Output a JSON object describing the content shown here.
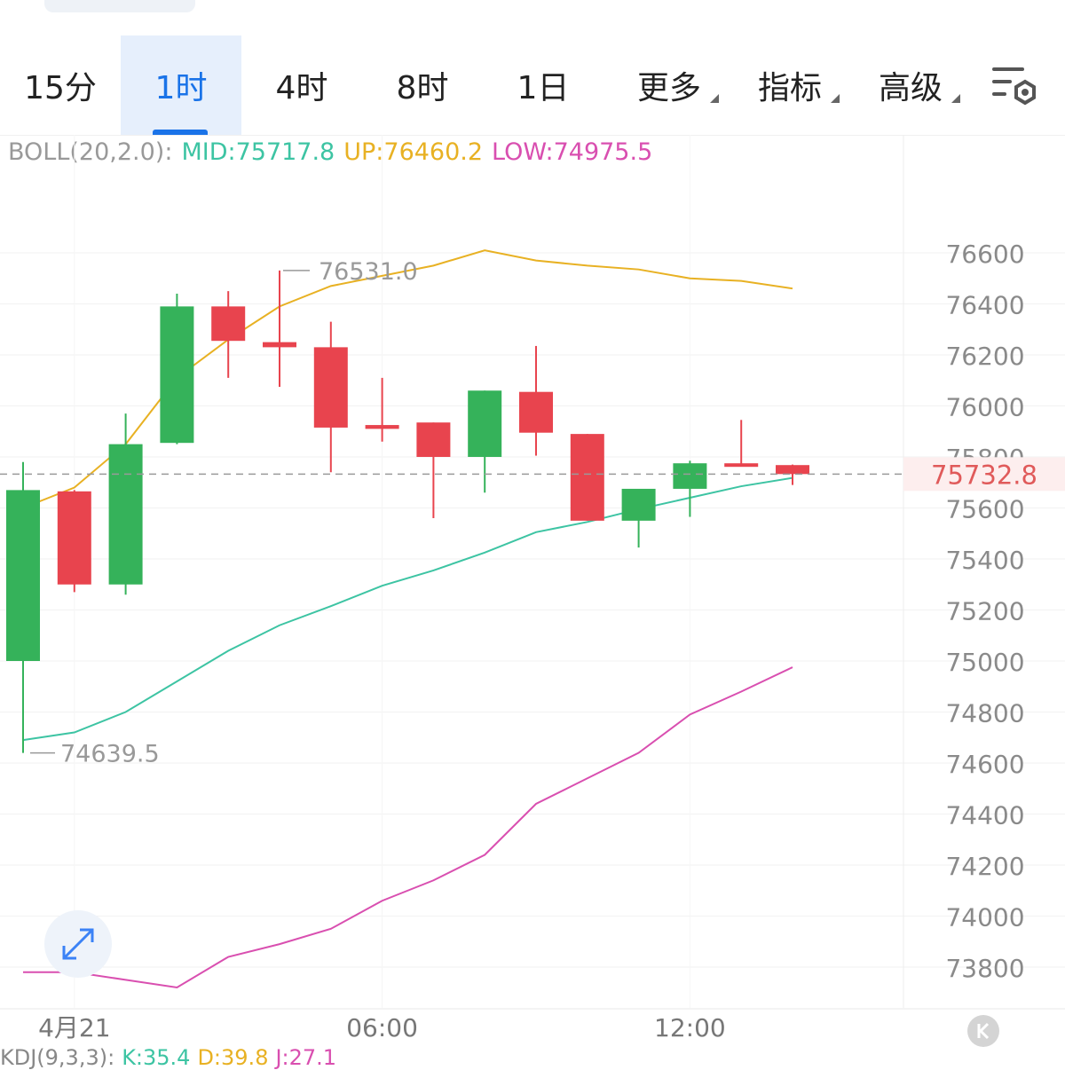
{
  "tabs": [
    {
      "label": "15分",
      "active": false,
      "dropdown": false
    },
    {
      "label": "1时",
      "active": true,
      "dropdown": false
    },
    {
      "label": "4时",
      "active": false,
      "dropdown": false
    },
    {
      "label": "8时",
      "active": false,
      "dropdown": false
    },
    {
      "label": "1日",
      "active": false,
      "dropdown": false
    },
    {
      "label": "更多",
      "active": false,
      "dropdown": true
    },
    {
      "label": "指标",
      "active": false,
      "dropdown": true
    },
    {
      "label": "高级",
      "active": false,
      "dropdown": true
    }
  ],
  "settings_icon": "chart-settings-icon",
  "boll": {
    "label": "BOLL(20,2.0):",
    "mid": "MID:75717.8",
    "up": "UP:76460.2",
    "low": "LOW:74975.5"
  },
  "kdj": {
    "label": "KDJ(9,3,3):",
    "k": "K:35.4",
    "d": "D:39.8",
    "j": "J:27.1"
  },
  "colors": {
    "up_candle": "#35b25a",
    "down_candle": "#e8444e",
    "mid": "#3dc4a3",
    "upper": "#e8b123",
    "lower": "#d94fb0",
    "accent": "#1a73e8",
    "last_price": "#e05a5a"
  },
  "chart_data": {
    "type": "candlestick",
    "y_axis_ticks": [
      "76600",
      "76400",
      "76200",
      "76000",
      "75800",
      "75600",
      "75400",
      "75200",
      "75000",
      "74800",
      "74600",
      "74400",
      "74200",
      "74000",
      "73800"
    ],
    "ylim": [
      73800,
      76600
    ],
    "x_axis_labels": [
      {
        "label": "4月21",
        "index": 1
      },
      {
        "label": "06:00",
        "index": 7
      },
      {
        "label": "12:00",
        "index": 13
      }
    ],
    "last_price": "75732.8",
    "max_label": "76531.0",
    "min_label": "74639.5",
    "candles": [
      {
        "open": 75000,
        "high": 75780,
        "low": 74639.5,
        "close": 75670
      },
      {
        "open": 75665,
        "high": 75670,
        "low": 75270,
        "close": 75300
      },
      {
        "open": 75300,
        "high": 75970,
        "low": 75260,
        "close": 75850
      },
      {
        "open": 75855,
        "high": 76440,
        "low": 75850,
        "close": 76390
      },
      {
        "open": 76390,
        "high": 76450,
        "low": 76110,
        "close": 76255
      },
      {
        "open": 76250,
        "high": 76531.0,
        "low": 76075,
        "close": 76230
      },
      {
        "open": 76230,
        "high": 76330,
        "low": 75740,
        "close": 75915
      },
      {
        "open": 75925,
        "high": 76110,
        "low": 75860,
        "close": 75910
      },
      {
        "open": 75935,
        "high": 75935,
        "low": 75560,
        "close": 75800
      },
      {
        "open": 75800,
        "high": 76060,
        "low": 75660,
        "close": 76060
      },
      {
        "open": 76055,
        "high": 76235,
        "low": 75805,
        "close": 75895
      },
      {
        "open": 75890,
        "high": 75890,
        "low": 75550,
        "close": 75550
      },
      {
        "open": 75550,
        "high": 75675,
        "low": 75445,
        "close": 75675
      },
      {
        "open": 75675,
        "high": 75785,
        "low": 75565,
        "close": 75775
      },
      {
        "open": 75775,
        "high": 75945,
        "low": 75765,
        "close": 75770
      },
      {
        "open": 75768,
        "high": 75770,
        "low": 75690,
        "close": 75732.8
      }
    ],
    "series": [
      {
        "name": "UP",
        "values": [
          75600,
          75680,
          75850,
          76110,
          76260,
          76390,
          76470,
          76510,
          76550,
          76610,
          76570,
          76550,
          76535,
          76500,
          76490,
          76460.2
        ]
      },
      {
        "name": "MID",
        "values": [
          74690,
          74720,
          74800,
          74920,
          75040,
          75140,
          75215,
          75295,
          75355,
          75425,
          75505,
          75545,
          75595,
          75640,
          75685,
          75717.8
        ]
      },
      {
        "name": "LOW",
        "values": [
          73780,
          73780,
          73750,
          73720,
          73840,
          73890,
          73950,
          74060,
          74140,
          74240,
          74440,
          74540,
          74640,
          74790,
          74880,
          74975.5
        ]
      }
    ]
  }
}
